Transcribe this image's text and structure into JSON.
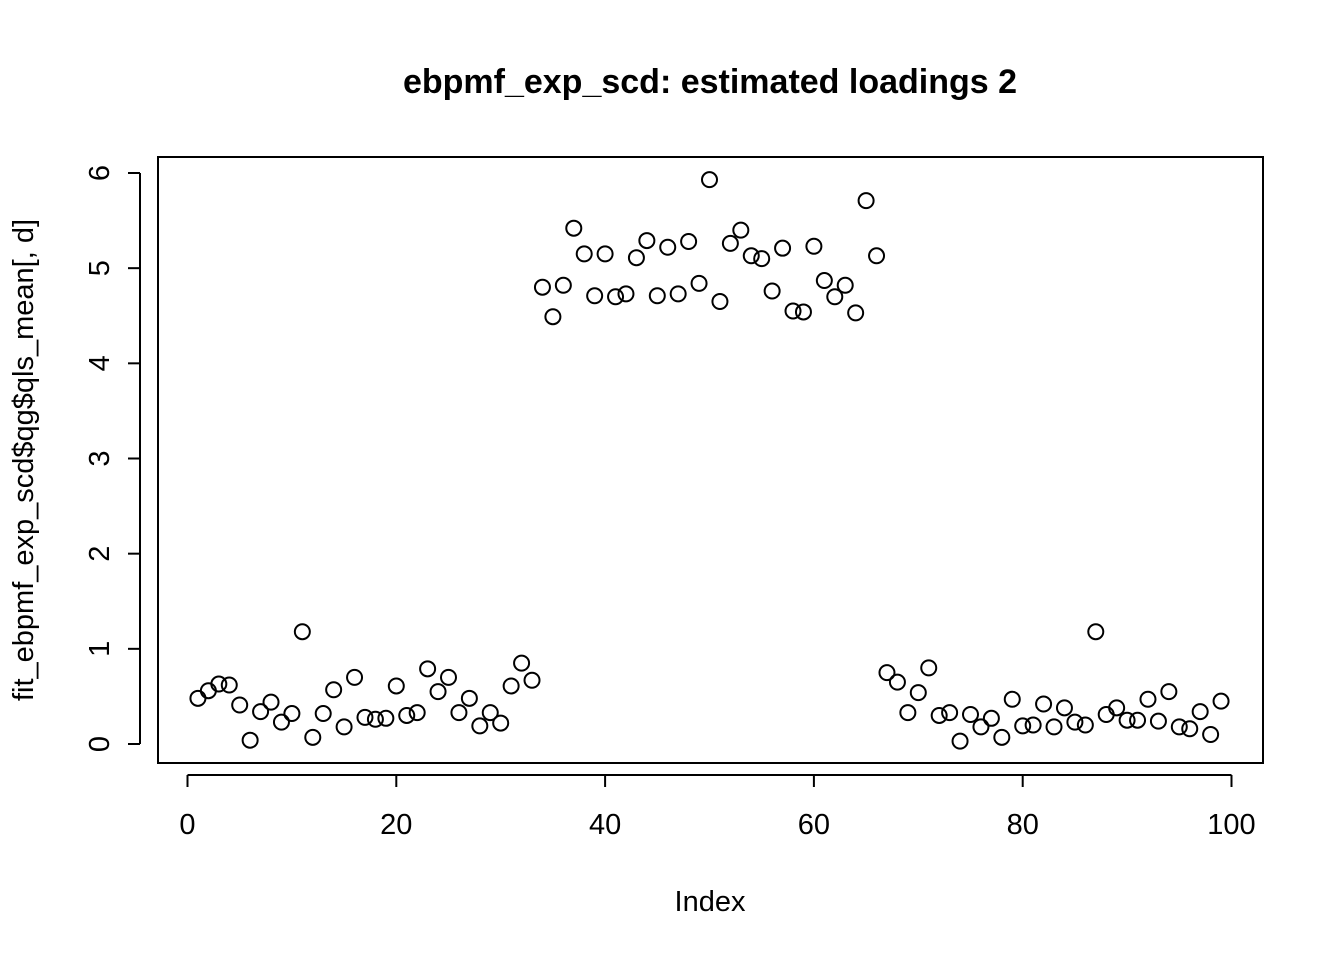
{
  "chart_data": {
    "type": "scatter",
    "title": "ebpmf_exp_scd: estimated loadings 2",
    "xlabel": "Index",
    "ylabel": "fit_ebpmf_exp_scd$qg$qls_mean[, d]",
    "xlim": [
      0,
      100
    ],
    "ylim": [
      0,
      6
    ],
    "xticks": [
      0,
      20,
      40,
      60,
      80,
      100
    ],
    "yticks": [
      0,
      1,
      2,
      3,
      4,
      5,
      6
    ],
    "grid": false,
    "marker": "open-circle",
    "x": [
      1,
      2,
      3,
      4,
      5,
      6,
      7,
      8,
      9,
      10,
      11,
      12,
      13,
      14,
      15,
      16,
      17,
      18,
      19,
      20,
      21,
      22,
      23,
      24,
      25,
      26,
      27,
      28,
      29,
      30,
      31,
      32,
      33,
      34,
      35,
      36,
      37,
      38,
      39,
      40,
      41,
      42,
      43,
      44,
      45,
      46,
      47,
      48,
      49,
      50,
      51,
      52,
      53,
      54,
      55,
      56,
      57,
      58,
      59,
      60,
      61,
      62,
      63,
      64,
      65,
      66,
      67,
      68,
      69,
      70,
      71,
      72,
      73,
      74,
      75,
      76,
      77,
      78,
      79,
      80,
      81,
      82,
      83,
      84,
      85,
      86,
      87,
      88,
      89,
      90,
      91,
      92,
      93,
      94,
      95,
      96,
      97,
      98,
      99
    ],
    "y": [
      0.48,
      0.56,
      0.63,
      0.62,
      0.41,
      0.04,
      0.34,
      0.44,
      0.23,
      0.32,
      1.18,
      0.07,
      0.32,
      0.57,
      0.18,
      0.7,
      0.28,
      0.26,
      0.27,
      0.61,
      0.3,
      0.33,
      0.79,
      0.55,
      0.7,
      0.33,
      0.48,
      0.19,
      0.33,
      0.22,
      0.61,
      0.85,
      0.67,
      4.8,
      4.49,
      4.82,
      5.42,
      5.15,
      4.71,
      5.15,
      4.7,
      4.73,
      5.11,
      5.29,
      4.71,
      5.22,
      4.73,
      5.28,
      4.84,
      5.93,
      4.65,
      5.26,
      5.4,
      5.13,
      5.1,
      4.76,
      5.21,
      4.55,
      4.54,
      5.23,
      4.87,
      4.7,
      4.82,
      4.53,
      5.71,
      5.13,
      0.75,
      0.65,
      0.33,
      0.54,
      0.8,
      0.3,
      0.33,
      0.03,
      0.31,
      0.18,
      0.27,
      0.07,
      0.47,
      0.19,
      0.2,
      0.42,
      0.18,
      0.38,
      0.23,
      0.2,
      1.18,
      0.31,
      0.38,
      0.25,
      0.25,
      0.47,
      0.24,
      0.55,
      0.18,
      0.16,
      0.34,
      0.1,
      0.45
    ]
  }
}
